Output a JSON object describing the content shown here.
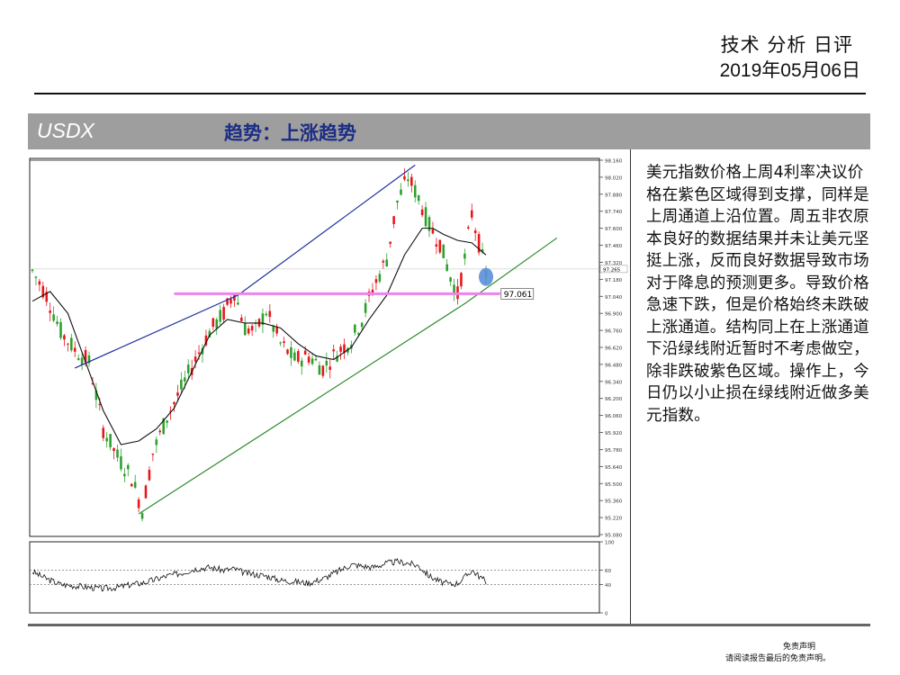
{
  "header": {
    "title": "技术 分析 日评",
    "date": "2019年05月06日"
  },
  "section": {
    "symbol": "USDX",
    "trend": "趋势：上涨趋势"
  },
  "analysis_text": "美元指数价格上周4利率决议价格在紫色区域得到支撑，同样是上周通道上沿位置。周五非农原本良好的数据结果并未让美元坚挺上涨，反而良好数据导致市场对于降息的预测更多。导致价格急速下跌，但是价格始终未跌破上涨通道。结构同上在上涨通道下沿绿线附近暂时不考虑做空，除非跌破紫色区域。操作上，今日仍以小止损在绿线附近做多美元指数。",
  "footer": {
    "disclaimer_title": "免责声明",
    "disclaimer_note": "请阅读报告最后的免责声明。"
  },
  "colors": {
    "bull": "#2ca02c",
    "bear": "#e8141b",
    "channel_upper": "#1f2f9c",
    "channel_lower": "#2e8b2e",
    "support": "#ee82ee",
    "marker": "#5b8fd9",
    "moving_average": "#111111"
  },
  "chart_data": [
    {
      "type": "candlestick",
      "title": "",
      "ylim": [
        95.08,
        98.16
      ],
      "y_ticks": [
        "98.160",
        "98.020",
        "97.880",
        "97.740",
        "97.600",
        "97.460",
        "97.320",
        "97.180",
        "97.040",
        "96.900",
        "96.760",
        "96.620",
        "96.480",
        "96.340",
        "96.200",
        "96.060",
        "95.920",
        "95.780",
        "95.640",
        "95.500",
        "95.360",
        "95.220",
        "95.080"
      ],
      "current_price": "97.265",
      "support_level": {
        "value": 97.061,
        "label": "97.061"
      },
      "price_path": [
        [
          0,
          97.25
        ],
        [
          4,
          97.05
        ],
        [
          8,
          96.75
        ],
        [
          12,
          96.6
        ],
        [
          16,
          96.5
        ],
        [
          20,
          95.95
        ],
        [
          24,
          95.72
        ],
        [
          28,
          95.55
        ],
        [
          31,
          95.28
        ],
        [
          34,
          95.75
        ],
        [
          38,
          96.05
        ],
        [
          42,
          96.28
        ],
        [
          46,
          96.52
        ],
        [
          50,
          96.75
        ],
        [
          54,
          96.9
        ],
        [
          57,
          97.08
        ],
        [
          60,
          96.78
        ],
        [
          63,
          96.75
        ],
        [
          66,
          96.92
        ],
        [
          70,
          96.65
        ],
        [
          74,
          96.52
        ],
        [
          78,
          96.55
        ],
        [
          82,
          96.45
        ],
        [
          86,
          96.58
        ],
        [
          90,
          96.68
        ],
        [
          93,
          96.85
        ],
        [
          96,
          97.1
        ],
        [
          100,
          97.35
        ],
        [
          103,
          97.82
        ],
        [
          106,
          98.02
        ],
        [
          109,
          97.85
        ],
        [
          112,
          97.62
        ],
        [
          115,
          97.48
        ],
        [
          118,
          97.2
        ],
        [
          120,
          97.05
        ],
        [
          122,
          97.35
        ],
        [
          124,
          97.72
        ],
        [
          126,
          97.48
        ],
        [
          128,
          97.22
        ]
      ],
      "moving_average": [
        [
          0,
          97.0
        ],
        [
          5,
          97.08
        ],
        [
          10,
          96.9
        ],
        [
          15,
          96.5
        ],
        [
          20,
          96.1
        ],
        [
          25,
          95.82
        ],
        [
          30,
          95.85
        ],
        [
          35,
          95.95
        ],
        [
          40,
          96.12
        ],
        [
          45,
          96.42
        ],
        [
          50,
          96.72
        ],
        [
          55,
          96.85
        ],
        [
          60,
          96.82
        ],
        [
          65,
          96.82
        ],
        [
          70,
          96.78
        ],
        [
          75,
          96.65
        ],
        [
          80,
          96.55
        ],
        [
          85,
          96.52
        ],
        [
          90,
          96.62
        ],
        [
          95,
          96.85
        ],
        [
          100,
          97.05
        ],
        [
          105,
          97.38
        ],
        [
          110,
          97.6
        ],
        [
          113,
          97.6
        ],
        [
          116,
          97.55
        ],
        [
          120,
          97.5
        ],
        [
          124,
          97.48
        ],
        [
          128,
          97.38
        ]
      ],
      "channel_upper": [
        [
          12,
          96.45
        ],
        [
          58,
          97.05
        ],
        [
          108,
          98.12
        ]
      ],
      "channel_lower": [
        [
          30,
          95.25
        ],
        [
          122,
          96.98
        ],
        [
          148,
          97.52
        ]
      ],
      "marker_point": [
        128,
        97.2
      ]
    },
    {
      "type": "line",
      "title": "",
      "ylim": [
        0,
        100
      ],
      "y_ticks": [
        "100",
        "60",
        "40",
        "0"
      ],
      "reference_lines": [
        60,
        40
      ],
      "oscillator": [
        [
          0,
          58
        ],
        [
          4,
          48
        ],
        [
          8,
          40
        ],
        [
          12,
          38
        ],
        [
          16,
          36
        ],
        [
          20,
          34
        ],
        [
          24,
          36
        ],
        [
          28,
          40
        ],
        [
          31,
          42
        ],
        [
          34,
          46
        ],
        [
          38,
          52
        ],
        [
          42,
          56
        ],
        [
          46,
          62
        ],
        [
          50,
          64
        ],
        [
          54,
          60
        ],
        [
          57,
          62
        ],
        [
          60,
          56
        ],
        [
          63,
          54
        ],
        [
          66,
          52
        ],
        [
          70,
          46
        ],
        [
          74,
          44
        ],
        [
          78,
          42
        ],
        [
          82,
          48
        ],
        [
          86,
          58
        ],
        [
          90,
          68
        ],
        [
          93,
          66
        ],
        [
          96,
          64
        ],
        [
          100,
          70
        ],
        [
          103,
          72
        ],
        [
          106,
          70
        ],
        [
          109,
          66
        ],
        [
          112,
          52
        ],
        [
          115,
          44
        ],
        [
          118,
          40
        ],
        [
          120,
          42
        ],
        [
          122,
          50
        ],
        [
          124,
          60
        ],
        [
          126,
          52
        ],
        [
          128,
          44
        ]
      ]
    }
  ]
}
